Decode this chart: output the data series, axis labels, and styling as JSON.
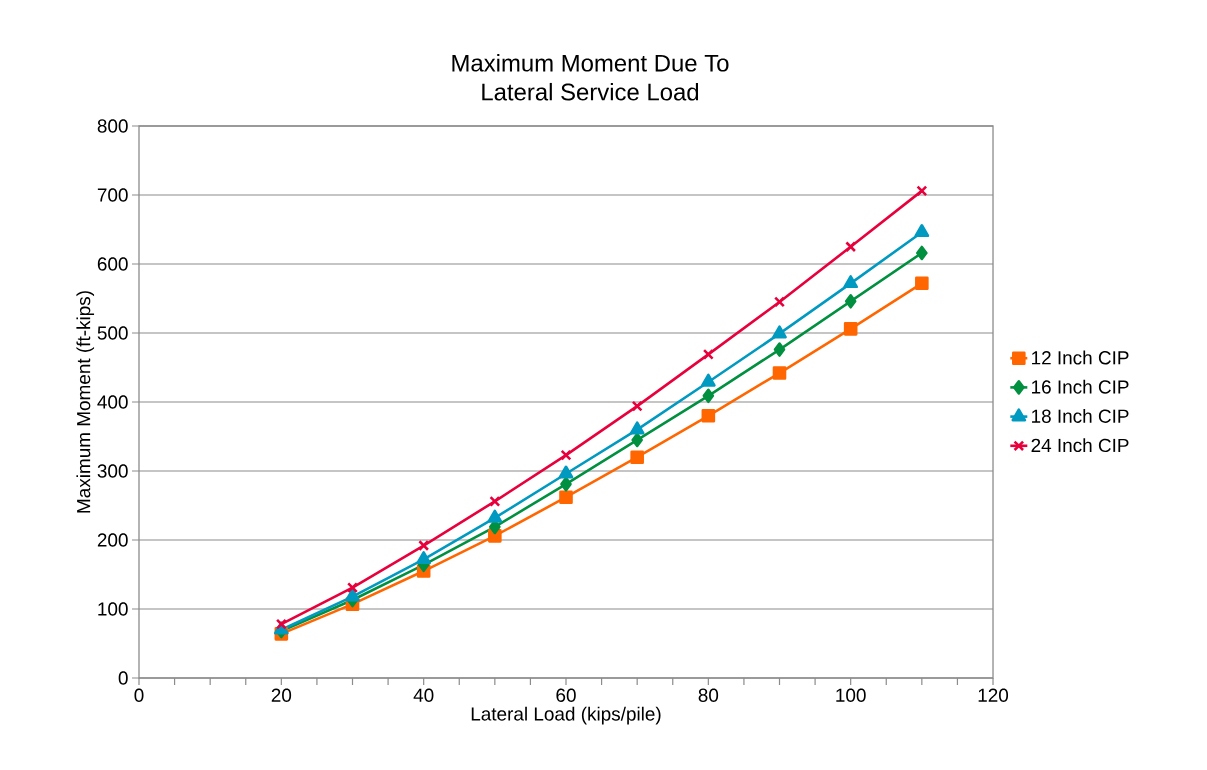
{
  "chart_data": {
    "type": "line",
    "title": "Maximum Moment Due To\nLateral Service Load",
    "xlabel": "Lateral Load (kips/pile)",
    "ylabel": "Maximum Moment (ft-kips)",
    "x": [
      20,
      30,
      40,
      50,
      60,
      70,
      80,
      90,
      100,
      110
    ],
    "series": [
      {
        "name": "12 Inch CIP",
        "color": "#ff6600",
        "marker": "square",
        "values": [
          64,
          107,
          155,
          206,
          262,
          320,
          380,
          442,
          506,
          572
        ]
      },
      {
        "name": "16 Inch CIP",
        "color": "#009040",
        "marker": "diamond",
        "values": [
          68,
          113,
          164,
          219,
          281,
          345,
          409,
          476,
          546,
          616
        ]
      },
      {
        "name": "18 Inch CIP",
        "color": "#0099c0",
        "marker": "triangle",
        "values": [
          70,
          118,
          172,
          232,
          296,
          360,
          429,
          499,
          572,
          646
        ]
      },
      {
        "name": "24 Inch CIP",
        "color": "#e8003c",
        "marker": "cross",
        "values": [
          78,
          131,
          192,
          256,
          323,
          394,
          469,
          545,
          625,
          706
        ]
      }
    ],
    "xlim": [
      0,
      120
    ],
    "xticks": [
      0,
      20,
      40,
      60,
      80,
      100,
      120
    ],
    "ylim": [
      0,
      800
    ],
    "yticks": [
      0,
      100,
      200,
      300,
      400,
      500,
      600,
      700,
      800
    ],
    "grid": "y",
    "legend": "right",
    "line_style": "solid"
  }
}
